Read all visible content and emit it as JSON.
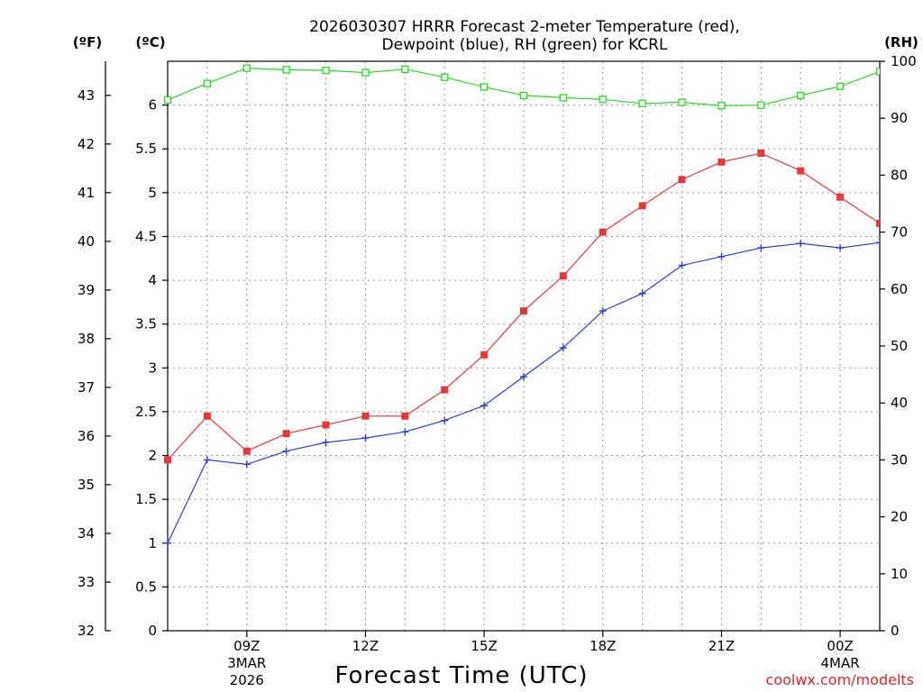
{
  "chart_data": {
    "type": "line",
    "title_line1": "2026030307 HRRR Forecast 2-meter Temperature (red),",
    "title_line2": "Dewpoint (blue), RH (green) for KCRL",
    "xlabel": "Forecast Time (UTC)",
    "credit": "coolwx.com/modelts",
    "units": {
      "fahrenheit": "(ºF)",
      "celsius": "(ºC)",
      "rh": "(RH)"
    },
    "x_hours": [
      7,
      8,
      9,
      10,
      11,
      12,
      13,
      14,
      15,
      16,
      17,
      18,
      19,
      20,
      21,
      22,
      23,
      24,
      25
    ],
    "x_range": [
      7,
      25
    ],
    "x_ticks": [
      {
        "hour": 9,
        "label": "09Z",
        "sub1": "3MAR",
        "sub2": "2026"
      },
      {
        "hour": 12,
        "label": "12Z",
        "sub1": "",
        "sub2": ""
      },
      {
        "hour": 15,
        "label": "15Z",
        "sub1": "",
        "sub2": ""
      },
      {
        "hour": 18,
        "label": "18Z",
        "sub1": "",
        "sub2": ""
      },
      {
        "hour": 21,
        "label": "21Z",
        "sub1": "",
        "sub2": ""
      },
      {
        "hour": 24,
        "label": "00Z",
        "sub1": "4MAR",
        "sub2": ""
      }
    ],
    "celsius_axis": {
      "range": [
        0,
        6.5
      ],
      "ticks": [
        0,
        0.5,
        1,
        1.5,
        2,
        2.5,
        3,
        3.5,
        4,
        4.5,
        5,
        5.5,
        6
      ],
      "tick_labels": [
        "0",
        "0.5",
        "1",
        "1.5",
        "2",
        "2.5",
        "3",
        "3.5",
        "4",
        "4.5",
        "5",
        "5.5",
        "6"
      ]
    },
    "fahrenheit_axis": {
      "ticks": [
        32,
        33,
        34,
        35,
        36,
        37,
        38,
        39,
        40,
        41,
        42,
        43
      ],
      "tick_labels": [
        "32",
        "33",
        "34",
        "35",
        "36",
        "37",
        "38",
        "39",
        "40",
        "41",
        "42",
        "43"
      ]
    },
    "rh_axis": {
      "range": [
        0,
        100
      ],
      "ticks": [
        0,
        10,
        20,
        30,
        40,
        50,
        60,
        70,
        80,
        90,
        100
      ],
      "tick_labels": [
        "0",
        "10",
        "20",
        "30",
        "40",
        "50",
        "60",
        "70",
        "80",
        "90",
        "100"
      ]
    },
    "series": [
      {
        "name": "Temperature",
        "axis": "celsius",
        "color": "#e8363c",
        "marker": "filled-square",
        "values": [
          1.95,
          2.45,
          2.05,
          2.25,
          2.35,
          2.45,
          2.45,
          2.75,
          3.15,
          3.65,
          4.05,
          4.55,
          4.85,
          5.15,
          5.35,
          5.45,
          5.25,
          4.95,
          4.65
        ]
      },
      {
        "name": "Dewpoint",
        "axis": "celsius",
        "color": "#2a3fd6",
        "marker": "plus",
        "values": [
          1.0,
          1.95,
          1.9,
          2.05,
          2.15,
          2.2,
          2.27,
          2.4,
          2.57,
          2.9,
          3.23,
          3.65,
          3.85,
          4.17,
          4.27,
          4.37,
          4.42,
          4.37,
          4.43
        ]
      },
      {
        "name": "RH",
        "axis": "rh",
        "color": "#22dd22",
        "marker": "open-square",
        "values": [
          93.2,
          96.1,
          98.8,
          98.5,
          98.4,
          98.0,
          98.6,
          97.2,
          95.5,
          94.0,
          93.6,
          93.3,
          92.6,
          92.8,
          92.2,
          92.3,
          94.0,
          95.6,
          98.2
        ]
      }
    ]
  }
}
